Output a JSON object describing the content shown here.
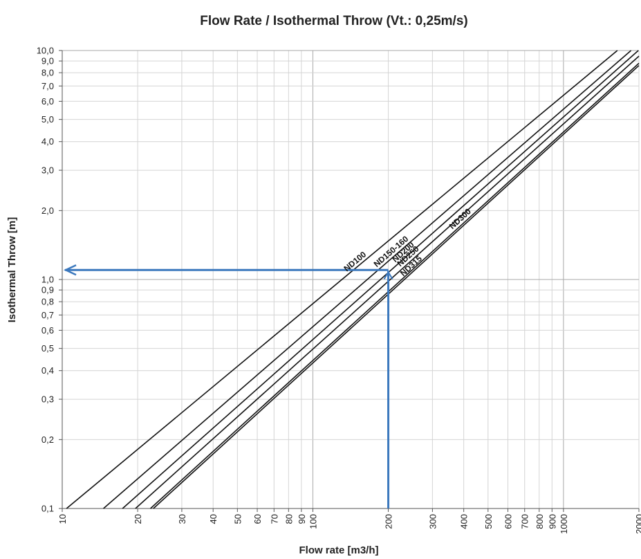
{
  "chart_data": {
    "type": "line",
    "title": "Flow Rate / Isothermal Throw (Vt.: 0,25m/s)",
    "xlabel": "Flow rate [m3/h]",
    "ylabel": "Isothermal Throw [m]",
    "x_scale": "log",
    "y_scale": "log",
    "xlim": [
      10,
      2000
    ],
    "ylim": [
      0.1,
      10
    ],
    "grid": true,
    "x_tick_labels": [
      {
        "value": 10,
        "label": "10"
      },
      {
        "value": 20,
        "label": "20"
      },
      {
        "value": 30,
        "label": "30"
      },
      {
        "value": 40,
        "label": "40"
      },
      {
        "value": 50,
        "label": "50"
      },
      {
        "value": 60,
        "label": "60"
      },
      {
        "value": 70,
        "label": "70"
      },
      {
        "value": 80,
        "label": "80"
      },
      {
        "value": 90,
        "label": "90"
      },
      {
        "value": 100,
        "label": "100"
      },
      {
        "value": 200,
        "label": "200"
      },
      {
        "value": 300,
        "label": "300"
      },
      {
        "value": 400,
        "label": "400"
      },
      {
        "value": 500,
        "label": "500"
      },
      {
        "value": 600,
        "label": "600"
      },
      {
        "value": 700,
        "label": "700"
      },
      {
        "value": 800,
        "label": "800"
      },
      {
        "value": 900,
        "label": "900"
      },
      {
        "value": 1000,
        "label": "1000"
      },
      {
        "value": 2000,
        "label": "2000"
      }
    ],
    "y_tick_labels": [
      {
        "value": 0.1,
        "label": "0,1"
      },
      {
        "value": 0.2,
        "label": "0,2"
      },
      {
        "value": 0.3,
        "label": "0,3"
      },
      {
        "value": 0.4,
        "label": "0,4"
      },
      {
        "value": 0.5,
        "label": "0,5"
      },
      {
        "value": 0.6,
        "label": "0,6"
      },
      {
        "value": 0.7,
        "label": "0,7"
      },
      {
        "value": 0.8,
        "label": "0,8"
      },
      {
        "value": 0.9,
        "label": "0,9"
      },
      {
        "value": 1.0,
        "label": "1,0"
      },
      {
        "value": 2.0,
        "label": "2,0"
      },
      {
        "value": 3.0,
        "label": "3,0"
      },
      {
        "value": 4.0,
        "label": "4,0"
      },
      {
        "value": 5.0,
        "label": "5,0"
      },
      {
        "value": 6.0,
        "label": "6,0"
      },
      {
        "value": 7.0,
        "label": "7,0"
      },
      {
        "value": 8.0,
        "label": "8,0"
      },
      {
        "value": 9.0,
        "label": "9,0"
      },
      {
        "value": 10.0,
        "label": "10,0"
      }
    ],
    "series": [
      {
        "name": "ND100",
        "x": [
          10.4,
          1640
        ],
        "y": [
          0.1,
          10
        ],
        "label_at": 152
      },
      {
        "name": "ND150-160",
        "x": [
          14.6,
          1860
        ],
        "y": [
          0.1,
          10
        ],
        "label_at": 212
      },
      {
        "name": "ND200",
        "x": [
          17.4,
          1990
        ],
        "y": [
          0.1,
          10
        ],
        "label_at": 237
      },
      {
        "name": "ND250",
        "x": [
          19.6,
          2000
        ],
        "y": [
          0.1,
          9.45
        ],
        "label_at": 248
      },
      {
        "name": "ND300",
        "x": [
          22.5,
          2000
        ],
        "y": [
          0.1,
          8.8
        ],
        "label_at": 400
      },
      {
        "name": "ND315",
        "x": [
          23.1,
          2000
        ],
        "y": [
          0.1,
          8.6
        ],
        "label_at": 255
      }
    ],
    "annotation": {
      "color": "#3b78bd",
      "flow_rate": 200,
      "throw": 1.1
    }
  }
}
